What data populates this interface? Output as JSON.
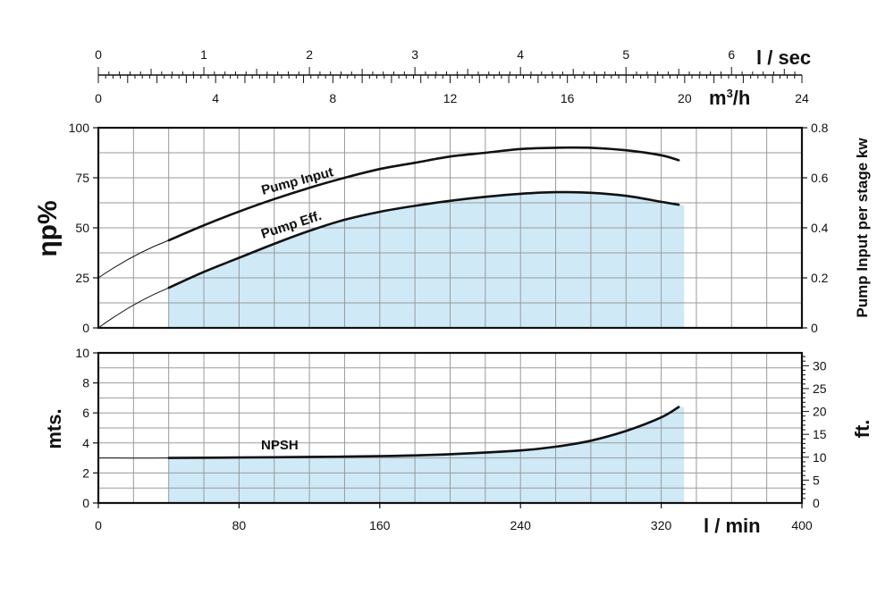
{
  "colors": {
    "fill": "#cfe9f7",
    "grid": "#9a9a9a",
    "axis": "#111111",
    "curve": "#111111"
  },
  "chart_data": [
    {
      "type": "line",
      "title": "",
      "x": [
        40,
        60,
        80,
        100,
        120,
        140,
        160,
        180,
        200,
        220,
        240,
        260,
        280,
        300,
        320,
        330
      ],
      "xlabel": "l / min",
      "xlim": [
        0,
        400
      ],
      "x_ticks": [
        "0",
        "80",
        "160",
        "240",
        "320",
        "400"
      ],
      "ylabel": "ηp%",
      "ylim": [
        0,
        100
      ],
      "y_ticks": [
        "0",
        "25",
        "50",
        "75",
        "100"
      ],
      "y2label": "Pump Input per stage kw",
      "y2lim": [
        0,
        0.8
      ],
      "y2_ticks": [
        "0",
        "0.2",
        "0.4",
        "0.6",
        "0.8"
      ],
      "secondary_x_axes": [
        {
          "unit": "l / sec",
          "ticks": [
            "0",
            "1",
            "2",
            "3",
            "4",
            "5",
            "6"
          ],
          "max": 6.667
        },
        {
          "unit": "m3/h",
          "unit_base": "m",
          "unit_sup": "3",
          "unit_rest": "/h",
          "ticks": [
            "0",
            "4",
            "8",
            "12",
            "16",
            "20",
            "24"
          ],
          "max": 24
        }
      ],
      "series": [
        {
          "name": "Pump Input",
          "axis": "right",
          "values": [
            0.35,
            0.41,
            0.465,
            0.515,
            0.56,
            0.6,
            0.635,
            0.66,
            0.685,
            0.7,
            0.715,
            0.72,
            0.72,
            0.71,
            0.69,
            0.67
          ],
          "extrapolated_start": [
            0,
            0.2
          ]
        },
        {
          "name": "Pump Eff.",
          "axis": "left",
          "filled": true,
          "values": [
            20,
            28,
            35,
            42,
            48.5,
            54,
            58,
            61,
            63.5,
            65.5,
            67,
            67.8,
            67.5,
            66,
            63,
            61.5
          ],
          "extrapolated_start": [
            0,
            0
          ]
        }
      ]
    },
    {
      "type": "line",
      "title": "",
      "x": [
        40,
        80,
        120,
        160,
        200,
        240,
        260,
        280,
        300,
        320,
        330
      ],
      "xlabel": "l / min",
      "xlim": [
        0,
        400
      ],
      "x_ticks": [
        "0",
        "80",
        "160",
        "240",
        "320",
        "400"
      ],
      "ylabel": "mts.",
      "ylim": [
        0,
        10
      ],
      "y_ticks": [
        "0",
        "2",
        "4",
        "6",
        "8",
        "10"
      ],
      "y2label": "ft.",
      "y2lim": [
        0,
        32.8
      ],
      "y2_ticks": [
        "0",
        "5",
        "10",
        "15",
        "20",
        "25",
        "30"
      ],
      "series": [
        {
          "name": "NPSH",
          "filled": true,
          "values": [
            3.0,
            3.03,
            3.07,
            3.12,
            3.25,
            3.5,
            3.75,
            4.15,
            4.8,
            5.7,
            6.4
          ],
          "extrapolated_start": [
            0,
            3.0
          ]
        }
      ]
    }
  ]
}
